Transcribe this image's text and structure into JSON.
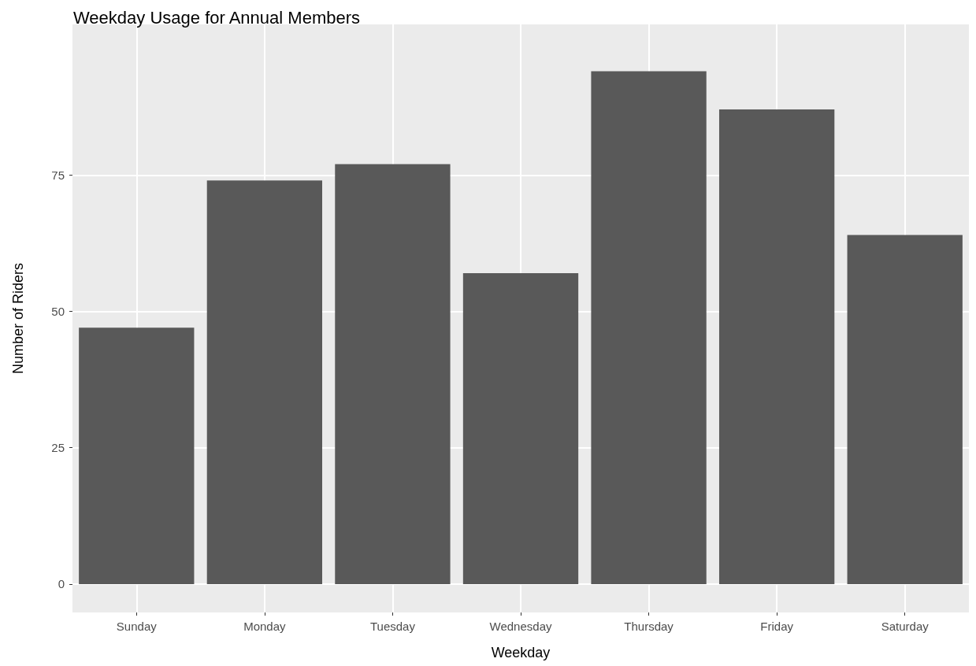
{
  "chart_data": {
    "type": "bar",
    "title": "Weekday Usage for Annual Members",
    "xlabel": "Weekday",
    "ylabel": "Number of Riders",
    "categories": [
      "Sunday",
      "Monday",
      "Tuesday",
      "Wednesday",
      "Thursday",
      "Friday",
      "Saturday"
    ],
    "values": [
      47,
      74,
      77,
      57,
      94,
      87,
      64
    ],
    "color": "#595959",
    "ylim": [
      -5.2,
      102.6
    ],
    "yticks": [
      0,
      25,
      50,
      75
    ],
    "grid": true
  }
}
